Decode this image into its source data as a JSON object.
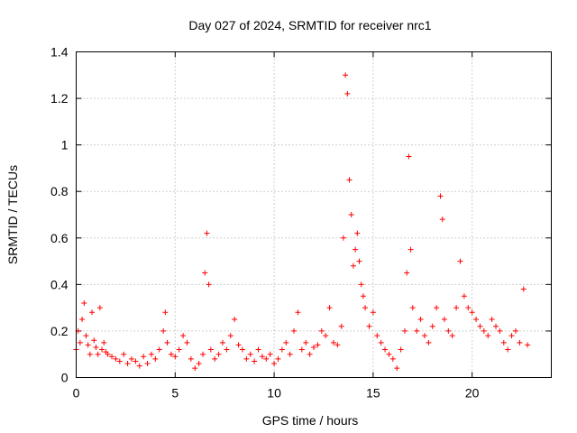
{
  "chart_data": {
    "type": "scatter",
    "title": "Day 027 of 2024, SRMTID for receiver nrc1",
    "xlabel": "GPS time / hours",
    "ylabel": "SRMTID / TECUs",
    "xlim": [
      0,
      24
    ],
    "ylim": [
      0,
      1.4
    ],
    "x_ticks": [
      0,
      5,
      10,
      15,
      20
    ],
    "x_tick_labels": [
      "0",
      "5",
      "10",
      "15",
      "20"
    ],
    "y_ticks": [
      0,
      0.2,
      0.4,
      0.6,
      0.8,
      1,
      1.2,
      1.4
    ],
    "y_tick_labels": [
      "0",
      "0.2",
      "0.4",
      "0.6",
      "0.8",
      "1",
      "1.2",
      "1.4"
    ],
    "grid": true,
    "marker": "+",
    "series_color": "#ff0000",
    "series": [
      {
        "name": "SRMTID",
        "x": [
          0.0,
          0.1,
          0.2,
          0.3,
          0.4,
          0.5,
          0.6,
          0.7,
          0.8,
          0.9,
          1.0,
          1.1,
          1.2,
          1.3,
          1.4,
          1.5,
          1.6,
          1.8,
          2.0,
          2.2,
          2.4,
          2.6,
          2.8,
          3.0,
          3.2,
          3.4,
          3.6,
          3.8,
          4.0,
          4.2,
          4.4,
          4.5,
          4.6,
          4.8,
          5.0,
          5.2,
          5.4,
          5.6,
          5.8,
          6.0,
          6.2,
          6.4,
          6.5,
          6.6,
          6.7,
          6.8,
          7.0,
          7.2,
          7.4,
          7.6,
          7.8,
          8.0,
          8.2,
          8.4,
          8.6,
          8.8,
          9.0,
          9.2,
          9.4,
          9.6,
          9.8,
          10.0,
          10.2,
          10.4,
          10.6,
          10.8,
          11.0,
          11.2,
          11.4,
          11.6,
          11.8,
          12.0,
          12.2,
          12.4,
          12.6,
          12.8,
          13.0,
          13.2,
          13.4,
          13.5,
          13.6,
          13.7,
          13.8,
          13.9,
          14.0,
          14.1,
          14.2,
          14.3,
          14.4,
          14.5,
          14.6,
          14.8,
          15.0,
          15.2,
          15.4,
          15.6,
          15.8,
          16.0,
          16.2,
          16.4,
          16.6,
          16.7,
          16.8,
          16.9,
          17.0,
          17.2,
          17.4,
          17.6,
          17.8,
          18.0,
          18.2,
          18.4,
          18.5,
          18.6,
          18.8,
          19.0,
          19.2,
          19.4,
          19.6,
          19.8,
          20.0,
          20.2,
          20.4,
          20.6,
          20.8,
          21.0,
          21.2,
          21.4,
          21.6,
          21.8,
          22.0,
          22.2,
          22.4,
          22.6,
          22.8
        ],
        "y": [
          0.12,
          0.2,
          0.15,
          0.25,
          0.32,
          0.18,
          0.14,
          0.1,
          0.28,
          0.16,
          0.13,
          0.1,
          0.3,
          0.12,
          0.15,
          0.11,
          0.1,
          0.09,
          0.08,
          0.07,
          0.1,
          0.06,
          0.08,
          0.07,
          0.05,
          0.09,
          0.06,
          0.1,
          0.08,
          0.12,
          0.2,
          0.28,
          0.15,
          0.1,
          0.09,
          0.12,
          0.18,
          0.15,
          0.08,
          0.04,
          0.06,
          0.1,
          0.45,
          0.62,
          0.4,
          0.12,
          0.08,
          0.1,
          0.15,
          0.12,
          0.18,
          0.25,
          0.14,
          0.12,
          0.08,
          0.1,
          0.07,
          0.12,
          0.09,
          0.08,
          0.1,
          0.06,
          0.08,
          0.12,
          0.15,
          0.1,
          0.2,
          0.28,
          0.12,
          0.15,
          0.1,
          0.13,
          0.14,
          0.2,
          0.18,
          0.3,
          0.15,
          0.14,
          0.22,
          0.6,
          1.3,
          1.22,
          0.85,
          0.7,
          0.48,
          0.55,
          0.62,
          0.5,
          0.4,
          0.35,
          0.3,
          0.22,
          0.28,
          0.18,
          0.15,
          0.12,
          0.1,
          0.08,
          0.04,
          0.12,
          0.2,
          0.45,
          0.95,
          0.55,
          0.3,
          0.2,
          0.25,
          0.18,
          0.15,
          0.22,
          0.3,
          0.78,
          0.68,
          0.25,
          0.2,
          0.18,
          0.3,
          0.5,
          0.35,
          0.3,
          0.28,
          0.25,
          0.22,
          0.2,
          0.18,
          0.25,
          0.22,
          0.2,
          0.15,
          0.12,
          0.18,
          0.2,
          0.15,
          0.38,
          0.14
        ]
      }
    ]
  }
}
